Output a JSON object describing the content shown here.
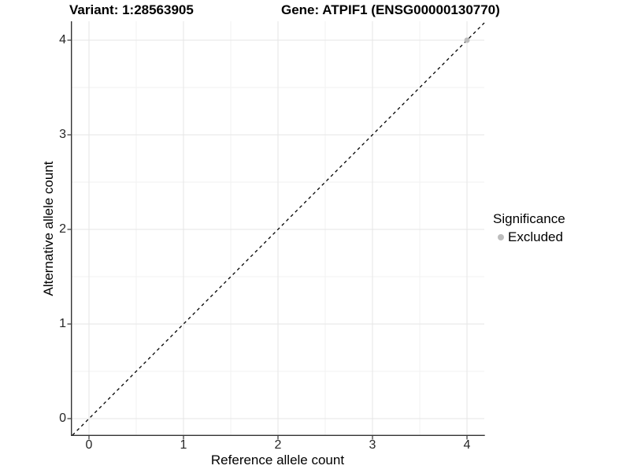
{
  "chart_data": {
    "type": "scatter",
    "title_left": "Variant: 1:28563905",
    "title_right": "Gene: ATPIF1 (ENSG00000130770)",
    "xlabel": "Reference allele count",
    "ylabel": "Alternative allele count",
    "xlim": [
      -0.2,
      4.2
    ],
    "ylim": [
      -0.2,
      4.2
    ],
    "x_ticks": [
      0,
      1,
      2,
      3,
      4
    ],
    "y_ticks": [
      0,
      1,
      2,
      3,
      4
    ],
    "grid": {
      "major": true,
      "minor": true
    },
    "legend": {
      "title": "Significance",
      "position": "right"
    },
    "reference_line": {
      "kind": "identity",
      "equation": "y = x",
      "style": "dashed",
      "color": "#000000"
    },
    "series": [
      {
        "name": "Excluded",
        "marker": "circle",
        "color": "#bdbdbd",
        "points": [
          [
            4,
            4
          ]
        ]
      }
    ]
  },
  "colors": {
    "background": "#ffffff",
    "axis_line": "#333333",
    "grid_major": "#e6e6e6",
    "grid_minor": "#f2f2f2",
    "tick_text": "#262626",
    "title_text": "#000000"
  }
}
